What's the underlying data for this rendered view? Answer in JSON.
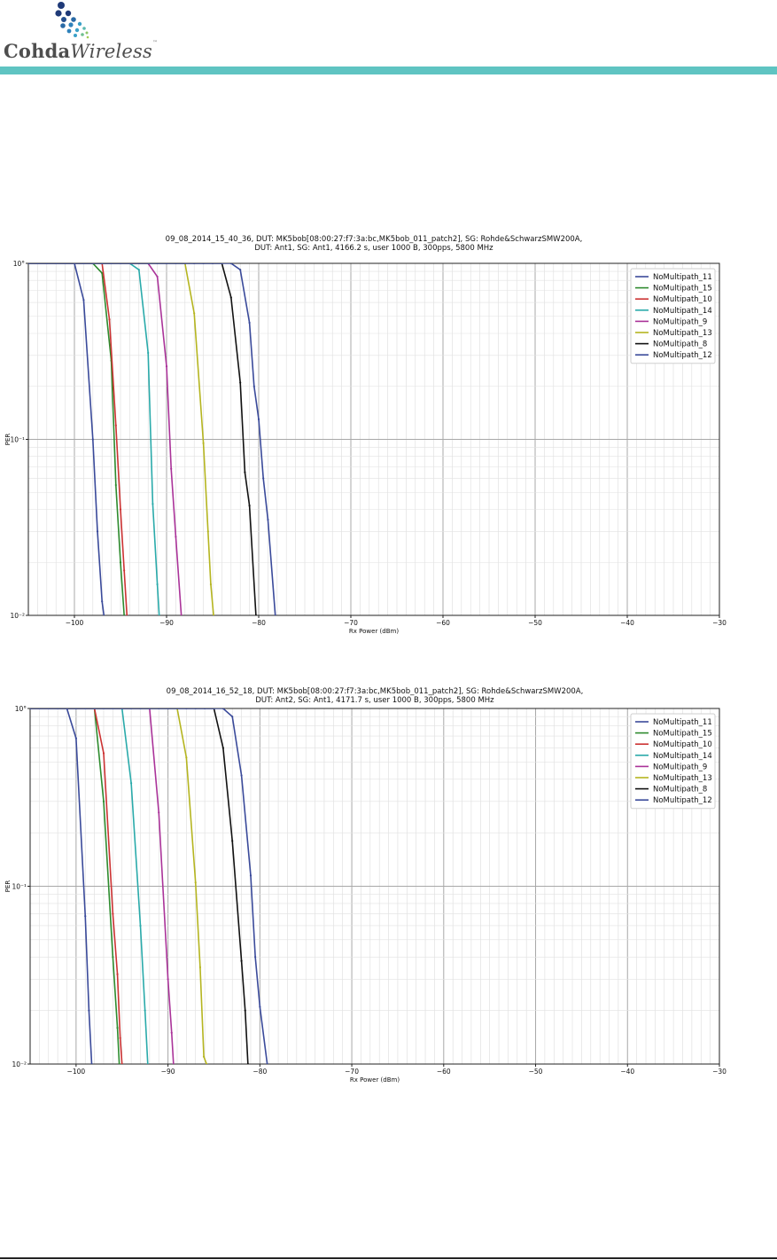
{
  "header": {
    "logo_cohda": "Cohda",
    "logo_wireless": "Wireless",
    "logo_tm": "™",
    "bar_color": "#5fc4c2"
  },
  "chart_data": [
    {
      "type": "line",
      "title": "09_08_2014_15_40_36, DUT: MK5bob[08:00:27:f7:3a:bc,MK5bob_011_patch2], SG: Rohde&SchwarzSMW200A,",
      "subtitle": "DUT: Ant1, SG: Ant1, 4166.2 s, user 1000 B, 300pps, 5800 MHz",
      "xlabel": "Rx Power (dBm)",
      "ylabel": "PER",
      "xscale": "linear",
      "yscale": "log",
      "xlim": [
        -105,
        -30
      ],
      "ylim": [
        0.01,
        1
      ],
      "xticks": [
        "−100",
        "−90",
        "−80",
        "−70",
        "−60",
        "−50",
        "−40",
        "−30"
      ],
      "xtick_values": [
        -100,
        -90,
        -80,
        -70,
        -60,
        -50,
        -40,
        -30
      ],
      "yticks": [
        "10°",
        "10⁻¹",
        "10⁻²"
      ],
      "ytick_values": [
        1,
        0.1,
        0.01
      ],
      "grid": true,
      "legend": "top-right",
      "series": [
        {
          "name": "NoMultipath_11",
          "color": "#3a4a9a",
          "x": [
            -105,
            -100,
            -99,
            -98,
            -97.5,
            -97,
            -96.8
          ],
          "y": [
            1,
            1,
            0.62,
            0.1,
            0.03,
            0.012,
            0.01
          ]
        },
        {
          "name": "NoMultipath_15",
          "color": "#2e8b2e",
          "x": [
            -105,
            -98,
            -97,
            -96,
            -95.5,
            -95,
            -94.6
          ],
          "y": [
            1,
            1,
            0.88,
            0.28,
            0.055,
            0.02,
            0.01
          ]
        },
        {
          "name": "NoMultipath_10",
          "color": "#cc3333",
          "x": [
            -105,
            -97,
            -96.2,
            -95.5,
            -95,
            -94.6,
            -94.3
          ],
          "y": [
            1,
            1,
            0.48,
            0.12,
            0.04,
            0.018,
            0.01
          ]
        },
        {
          "name": "NoMultipath_14",
          "color": "#2aaaaa",
          "x": [
            -105,
            -94,
            -93,
            -92,
            -91.5,
            -91,
            -90.8
          ],
          "y": [
            1,
            1,
            0.92,
            0.31,
            0.043,
            0.015,
            0.01
          ]
        },
        {
          "name": "NoMultipath_9",
          "color": "#aa3399",
          "x": [
            -105,
            -92,
            -91,
            -90,
            -89.5,
            -89,
            -88.4
          ],
          "y": [
            1,
            1,
            0.84,
            0.26,
            0.068,
            0.028,
            0.01
          ]
        },
        {
          "name": "NoMultipath_13",
          "color": "#b5b520",
          "x": [
            -105,
            -88,
            -87,
            -86,
            -85.5,
            -85.2,
            -84.9
          ],
          "y": [
            1,
            1,
            0.52,
            0.095,
            0.03,
            0.015,
            0.01
          ]
        },
        {
          "name": "NoMultipath_8",
          "color": "#111111",
          "x": [
            -105,
            -84,
            -83,
            -82,
            -81.5,
            -81,
            -80.3
          ],
          "y": [
            1,
            1,
            0.64,
            0.21,
            0.065,
            0.042,
            0.01
          ]
        },
        {
          "name": "NoMultipath_12",
          "color": "#3a4a9a",
          "x": [
            -105,
            -83,
            -82,
            -81,
            -80.5,
            -80,
            -79.5,
            -79,
            -78.2
          ],
          "y": [
            1,
            1,
            0.92,
            0.46,
            0.2,
            0.13,
            0.06,
            0.035,
            0.01
          ]
        }
      ]
    },
    {
      "type": "line",
      "title": "09_08_2014_16_52_18, DUT: MK5bob[08:00:27:f7:3a:bc,MK5bob_011_patch2], SG: Rohde&SchwarzSMW200A,",
      "subtitle": "DUT: Ant2, SG: Ant1, 4171.7 s, user 1000 B, 300pps, 5800 MHz",
      "xlabel": "Rx Power (dBm)",
      "ylabel": "PER",
      "xscale": "linear",
      "yscale": "log",
      "xlim": [
        -105,
        -30
      ],
      "ylim": [
        0.01,
        1
      ],
      "xticks": [
        "−100",
        "−90",
        "−80",
        "−70",
        "−60",
        "−50",
        "−40",
        "−30"
      ],
      "xtick_values": [
        -100,
        -90,
        -80,
        -70,
        -60,
        -50,
        -40,
        -30
      ],
      "yticks": [
        "10°",
        "10⁻¹",
        "10⁻²"
      ],
      "ytick_values": [
        1,
        0.1,
        0.01
      ],
      "grid": true,
      "legend": "top-right",
      "series": [
        {
          "name": "NoMultipath_11",
          "color": "#3a4a9a",
          "x": [
            -105,
            -101,
            -100,
            -99,
            -98.6,
            -98.3
          ],
          "y": [
            1,
            1,
            0.68,
            0.068,
            0.02,
            0.01
          ]
        },
        {
          "name": "NoMultipath_15",
          "color": "#2e8b2e",
          "x": [
            -105,
            -98,
            -97,
            -96,
            -95.5,
            -95.3
          ],
          "y": [
            1,
            1,
            0.3,
            0.04,
            0.016,
            0.01
          ]
        },
        {
          "name": "NoMultipath_10",
          "color": "#cc3333",
          "x": [
            -105,
            -98,
            -97,
            -96,
            -95.5,
            -95.2,
            -95
          ],
          "y": [
            1,
            1,
            0.56,
            0.07,
            0.032,
            0.014,
            0.01
          ]
        },
        {
          "name": "NoMultipath_14",
          "color": "#2aaaaa",
          "x": [
            -105,
            -95,
            -94,
            -93,
            -92.5,
            -92.2
          ],
          "y": [
            1,
            1,
            0.38,
            0.06,
            0.02,
            0.01
          ]
        },
        {
          "name": "NoMultipath_9",
          "color": "#aa3399",
          "x": [
            -105,
            -92,
            -91,
            -90,
            -89.6,
            -89.4
          ],
          "y": [
            1,
            1,
            0.26,
            0.03,
            0.015,
            0.01
          ]
        },
        {
          "name": "NoMultipath_13",
          "color": "#b5b520",
          "x": [
            -105,
            -89,
            -88,
            -87,
            -86.5,
            -86.1,
            -85.8
          ],
          "y": [
            1,
            1,
            0.53,
            0.105,
            0.035,
            0.011,
            0.01
          ]
        },
        {
          "name": "NoMultipath_8",
          "color": "#111111",
          "x": [
            -105,
            -85,
            -84,
            -83,
            -82,
            -81.6,
            -81.3
          ],
          "y": [
            1,
            1,
            0.6,
            0.18,
            0.038,
            0.02,
            0.01
          ]
        },
        {
          "name": "NoMultipath_12",
          "color": "#3a4a9a",
          "x": [
            -105,
            -84,
            -83,
            -82,
            -81,
            -80.5,
            -80,
            -79.2
          ],
          "y": [
            1,
            1,
            0.9,
            0.42,
            0.115,
            0.04,
            0.021,
            0.01
          ]
        }
      ]
    }
  ]
}
